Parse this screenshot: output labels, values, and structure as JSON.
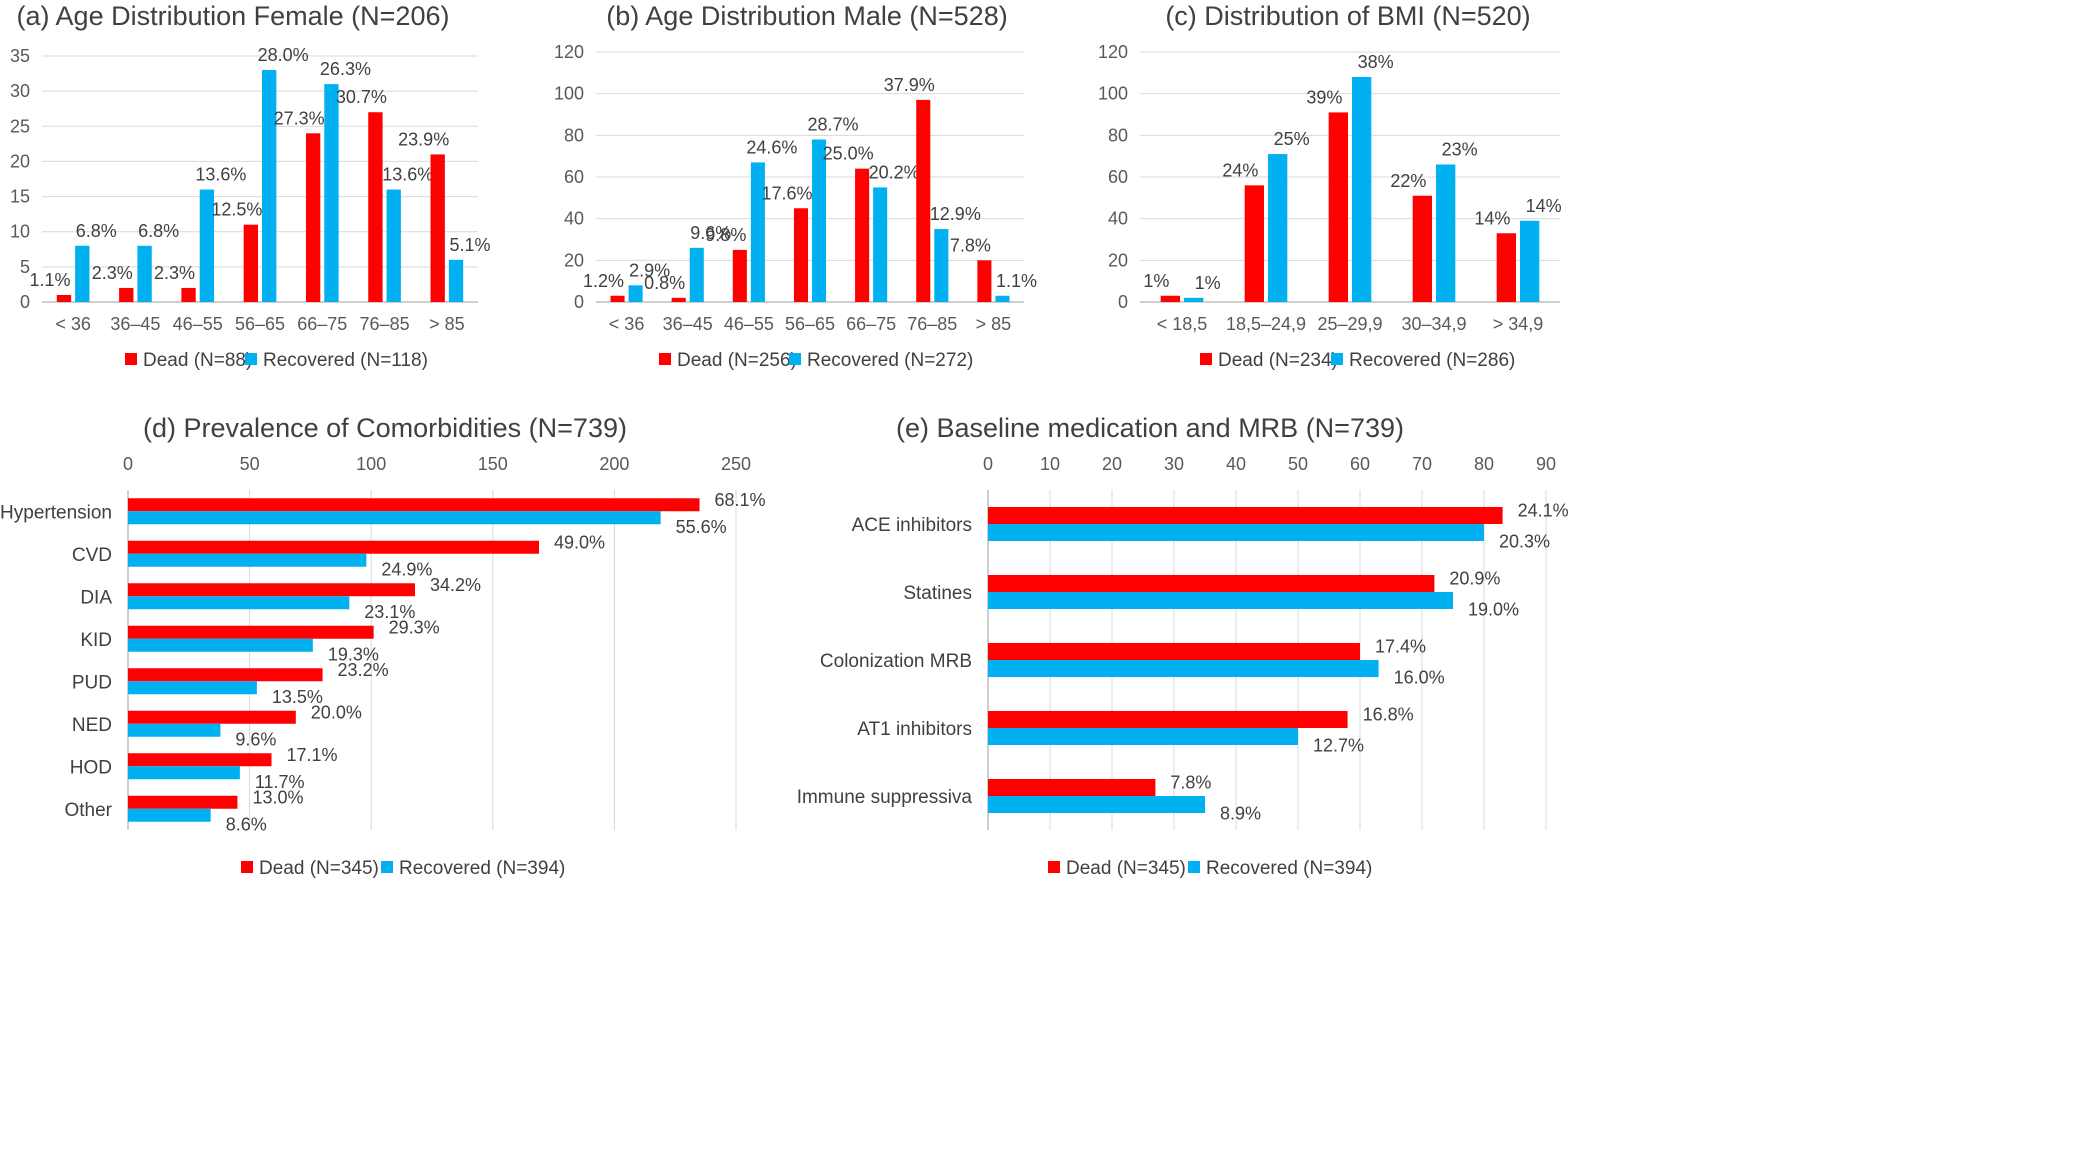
{
  "colors": {
    "dead": "#ff0000",
    "recovered": "#00b0f0",
    "grid": "#d9d9d9",
    "axis": "#bfbfbf"
  },
  "chart_data": [
    {
      "id": "a",
      "type": "bar",
      "title": "(a) Age Distribution Female (N=206)",
      "categories": [
        "< 36",
        "36–45",
        "46–55",
        "56–65",
        "66–75",
        "76–85",
        "> 85"
      ],
      "ylim": [
        0,
        35
      ],
      "yticks": [
        0,
        5,
        10,
        15,
        20,
        25,
        30,
        35
      ],
      "series": [
        {
          "name": "Dead (N=88)",
          "color": "dead",
          "values": [
            1,
            2,
            2,
            11,
            24,
            27,
            21
          ],
          "labels": [
            "1.1%",
            "2.3%",
            "2.3%",
            "12.5%",
            "27.3%",
            "30.7%",
            "23.9%"
          ]
        },
        {
          "name": "Recovered (N=118)",
          "color": "recovered",
          "values": [
            8,
            8,
            16,
            33,
            31,
            16,
            6
          ],
          "labels": [
            "6.8%",
            "6.8%",
            "13.6%",
            "28.0%",
            "26.3%",
            "13.6%",
            "5.1%"
          ]
        }
      ]
    },
    {
      "id": "b",
      "type": "bar",
      "title": "(b) Age Distribution Male (N=528)",
      "categories": [
        "< 36",
        "36–45",
        "46–55",
        "56–65",
        "66–75",
        "76–85",
        "> 85"
      ],
      "ylim": [
        0,
        120
      ],
      "yticks": [
        0,
        20,
        40,
        60,
        80,
        100,
        120
      ],
      "series": [
        {
          "name": "Dead (N=256)",
          "color": "dead",
          "values": [
            3,
            2,
            25,
            45,
            64,
            97,
            20
          ],
          "labels": [
            "1.2%",
            "0.8%",
            "9.8%",
            "17.6%",
            "25.0%",
            "37.9%",
            "7.8%"
          ]
        },
        {
          "name": "Recovered (N=272)",
          "color": "recovered",
          "values": [
            8,
            26,
            67,
            78,
            55,
            35,
            3
          ],
          "labels": [
            "2.9%",
            "9.6%",
            "24.6%",
            "28.7%",
            "20.2%",
            "12.9%",
            "1.1%"
          ]
        }
      ]
    },
    {
      "id": "c",
      "type": "bar",
      "title": "(c) Distribution of BMI (N=520)",
      "categories": [
        "< 18,5",
        "18,5–24,9",
        "25–29,9",
        "30–34,9",
        "> 34,9"
      ],
      "ylim": [
        0,
        120
      ],
      "yticks": [
        0,
        20,
        40,
        60,
        80,
        100,
        120
      ],
      "series": [
        {
          "name": "Dead (N=234)",
          "color": "dead",
          "values": [
            3,
            56,
            91,
            51,
            33
          ],
          "labels": [
            "1%",
            "24%",
            "39%",
            "22%",
            "14%"
          ]
        },
        {
          "name": "Recovered (N=286)",
          "color": "recovered",
          "values": [
            2,
            71,
            108,
            66,
            39
          ],
          "labels": [
            "1%",
            "25%",
            "38%",
            "23%",
            "14%"
          ]
        }
      ]
    },
    {
      "id": "d",
      "type": "hbar",
      "title": "(d) Prevalence of Comorbidities (N=739)",
      "categories": [
        "Hypertension",
        "CVD",
        "DIA",
        "KID",
        "PUD",
        "NED",
        "HOD",
        "Other"
      ],
      "xlim": [
        0,
        250
      ],
      "xticks": [
        0,
        50,
        100,
        150,
        200,
        250
      ],
      "series": [
        {
          "name": "Dead (N=345)",
          "color": "dead",
          "values": [
            235,
            169,
            118,
            101,
            80,
            69,
            59,
            45
          ],
          "labels": [
            "68.1%",
            "49.0%",
            "34.2%",
            "29.3%",
            "23.2%",
            "20.0%",
            "17.1%",
            "13.0%"
          ]
        },
        {
          "name": "Recovered (N=394)",
          "color": "recovered",
          "values": [
            219,
            98,
            91,
            76,
            53,
            38,
            46,
            34
          ],
          "labels": [
            "55.6%",
            "24.9%",
            "23.1%",
            "19.3%",
            "13.5%",
            "9.6%",
            "11.7%",
            "8.6%"
          ]
        }
      ]
    },
    {
      "id": "e",
      "type": "hbar",
      "title": "(e) Baseline medication and MRB (N=739)",
      "categories": [
        "ACE inhibitors",
        "Statines",
        "Colonization MRB",
        "AT1 inhibitors",
        "Immune suppressiva"
      ],
      "xlim": [
        0,
        90
      ],
      "xticks": [
        0,
        10,
        20,
        30,
        40,
        50,
        60,
        70,
        80,
        90
      ],
      "series": [
        {
          "name": "Dead (N=345)",
          "color": "dead",
          "values": [
            83,
            72,
            60,
            58,
            27
          ],
          "labels": [
            "24.1%",
            "20.9%",
            "17.4%",
            "16.8%",
            "7.8%"
          ]
        },
        {
          "name": "Recovered (N=394)",
          "color": "recovered",
          "values": [
            80,
            75,
            63,
            50,
            35
          ],
          "labels": [
            "20.3%",
            "19.0%",
            "16.0%",
            "12.7%",
            "8.9%"
          ]
        }
      ]
    }
  ]
}
